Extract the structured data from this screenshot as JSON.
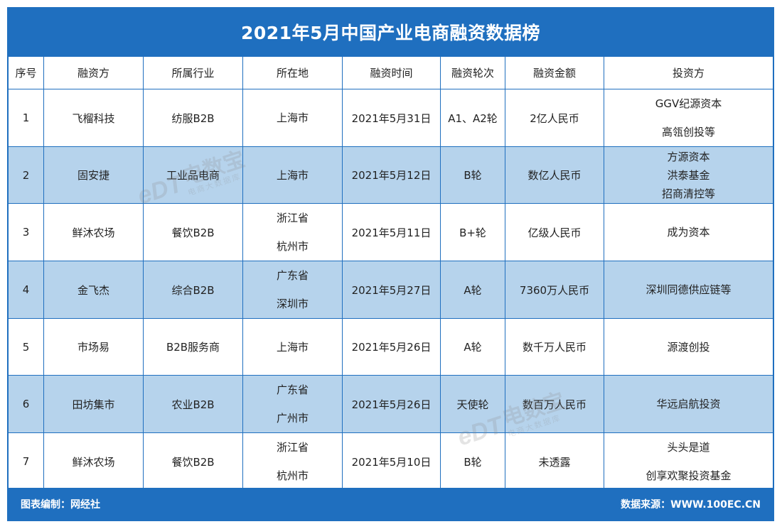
{
  "title": "2021年5月中国产业电商融资数据榜",
  "headers": [
    "序号",
    "融资方",
    "所属行业",
    "所在地",
    "融资时间",
    "融资轮次",
    "融资金额",
    "投资方"
  ],
  "rows": [
    {
      "no": "1",
      "company": "飞榴科技",
      "industry": "纺服B2B",
      "location": [
        "上海市"
      ],
      "date": "2021年5月31日",
      "round": "A1、A2轮",
      "amount": "2亿人民币",
      "investors": [
        "GGV纪源资本",
        "高瓴创投等"
      ]
    },
    {
      "no": "2",
      "company": "固安捷",
      "industry": "工业品电商",
      "location": [
        "上海市"
      ],
      "date": "2021年5月12日",
      "round": "B轮",
      "amount": "数亿人民币",
      "investors": [
        "方源资本",
        "洪泰基金",
        "招商清控等"
      ]
    },
    {
      "no": "3",
      "company": "鲜沐农场",
      "industry": "餐饮B2B",
      "location": [
        "浙江省",
        "杭州市"
      ],
      "date": "2021年5月11日",
      "round": "B+轮",
      "amount": "亿级人民币",
      "investors": [
        "成为资本"
      ]
    },
    {
      "no": "4",
      "company": "金飞杰",
      "industry": "综合B2B",
      "location": [
        "广东省",
        "深圳市"
      ],
      "date": "2021年5月27日",
      "round": "A轮",
      "amount": "7360万人民币",
      "investors": [
        "深圳同德供应链等"
      ]
    },
    {
      "no": "5",
      "company": "市场易",
      "industry": "B2B服务商",
      "location": [
        "上海市"
      ],
      "date": "2021年5月26日",
      "round": "A轮",
      "amount": "数千万人民币",
      "investors": [
        "源渡创投"
      ]
    },
    {
      "no": "6",
      "company": "田坊集市",
      "industry": "农业B2B",
      "location": [
        "广东省",
        "广州市"
      ],
      "date": "2021年5月26日",
      "round": "天使轮",
      "amount": "数百万人民币",
      "investors": [
        "华远启航投资"
      ]
    },
    {
      "no": "7",
      "company": "鲜沐农场",
      "industry": "餐饮B2B",
      "location": [
        "浙江省",
        "杭州市"
      ],
      "date": "2021年5月10日",
      "round": "B轮",
      "amount": "未透露",
      "investors": [
        "头头是道",
        "创享欢聚投资基金"
      ]
    }
  ],
  "footer": {
    "left": "图表编制：网经社",
    "right": "数据来源：WWW.100EC.CN"
  },
  "watermark": {
    "logo": "eDT",
    "name": "电数宝",
    "sub": "电商大数据库"
  },
  "colors": {
    "primary": "#1f6fbf",
    "alt_row": "#b6d3ec"
  }
}
